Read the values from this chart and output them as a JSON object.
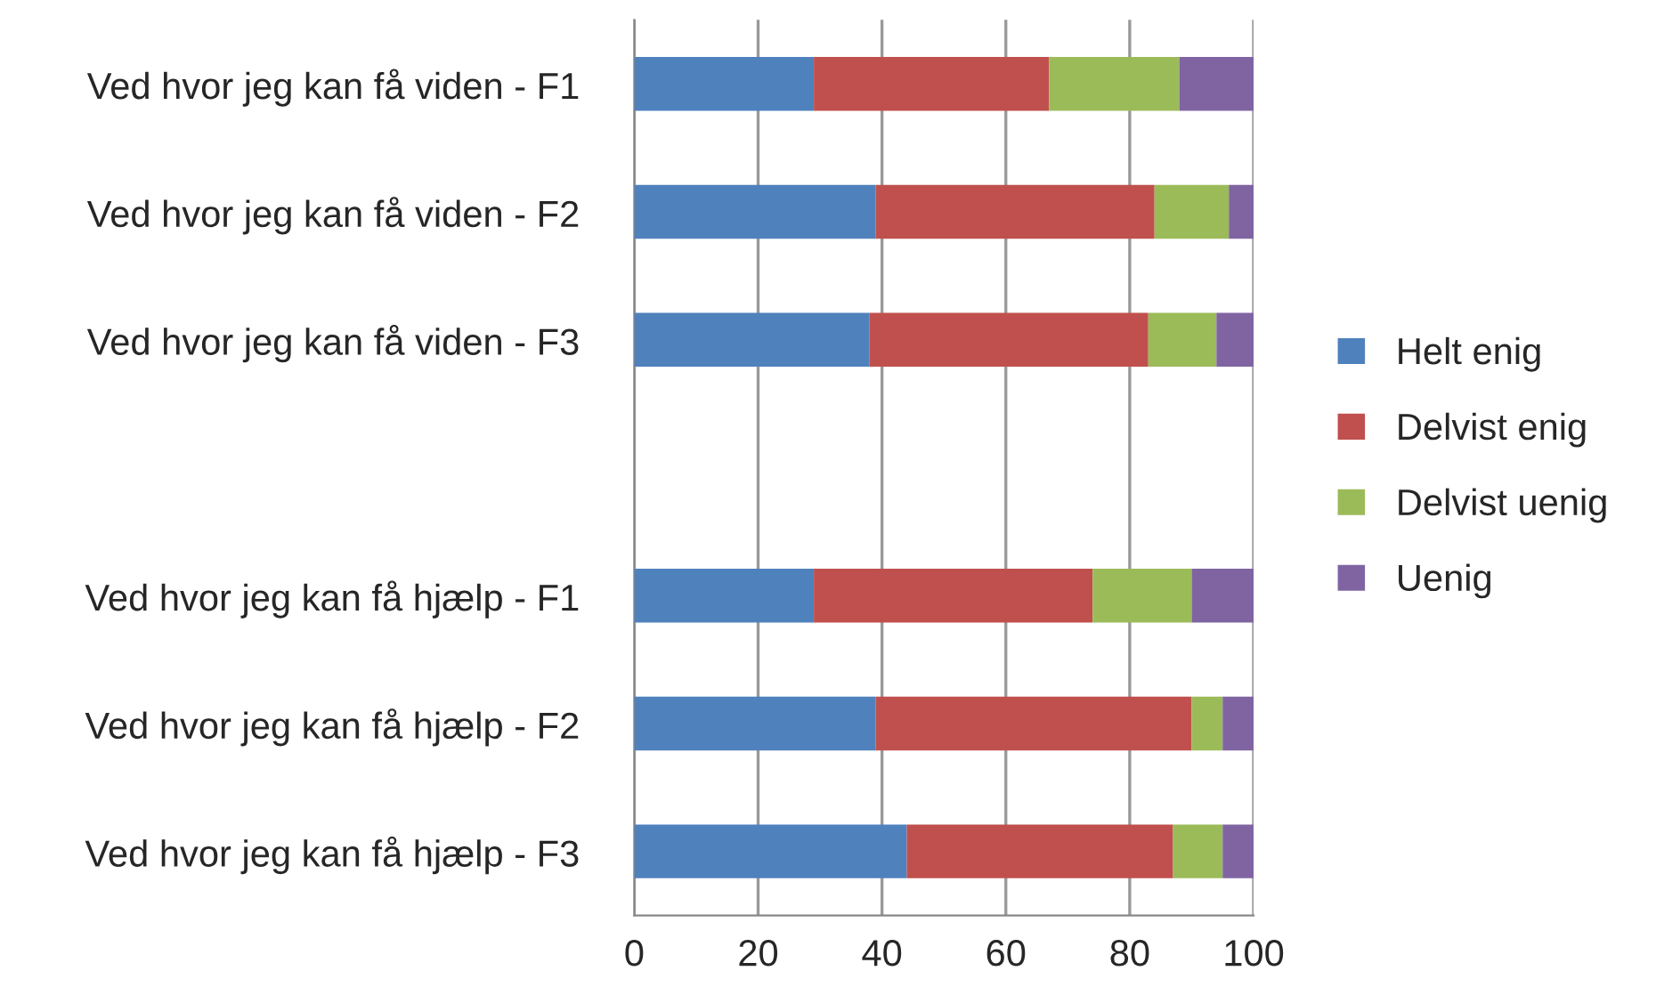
{
  "chart_data": {
    "type": "bar",
    "orientation": "horizontal",
    "stacked": true,
    "categories": [
      "Ved hvor jeg kan få viden - F1",
      "Ved hvor jeg kan få viden - F2",
      "Ved hvor jeg kan få viden - F3",
      null,
      "Ved hvor jeg kan få hjælp - F1",
      "Ved hvor jeg kan få hjælp - F2",
      "Ved hvor jeg kan få hjælp - F3"
    ],
    "series": [
      {
        "name": "Helt enig",
        "color": "#4f81bd",
        "values": [
          29,
          39,
          38,
          null,
          29,
          39,
          44
        ]
      },
      {
        "name": "Delvist enig",
        "color": "#c0504d",
        "values": [
          38,
          45,
          45,
          null,
          45,
          51,
          43
        ]
      },
      {
        "name": "Delvist uenig",
        "color": "#9bbb59",
        "values": [
          21,
          12,
          11,
          null,
          16,
          5,
          8
        ]
      },
      {
        "name": "Uenig",
        "color": "#8064a2",
        "values": [
          12,
          4,
          6,
          null,
          10,
          5,
          5
        ]
      }
    ],
    "xlim": [
      0,
      100
    ],
    "xticks": [
      0,
      20,
      40,
      60,
      80,
      100
    ],
    "grid": "x",
    "legend": "right"
  }
}
